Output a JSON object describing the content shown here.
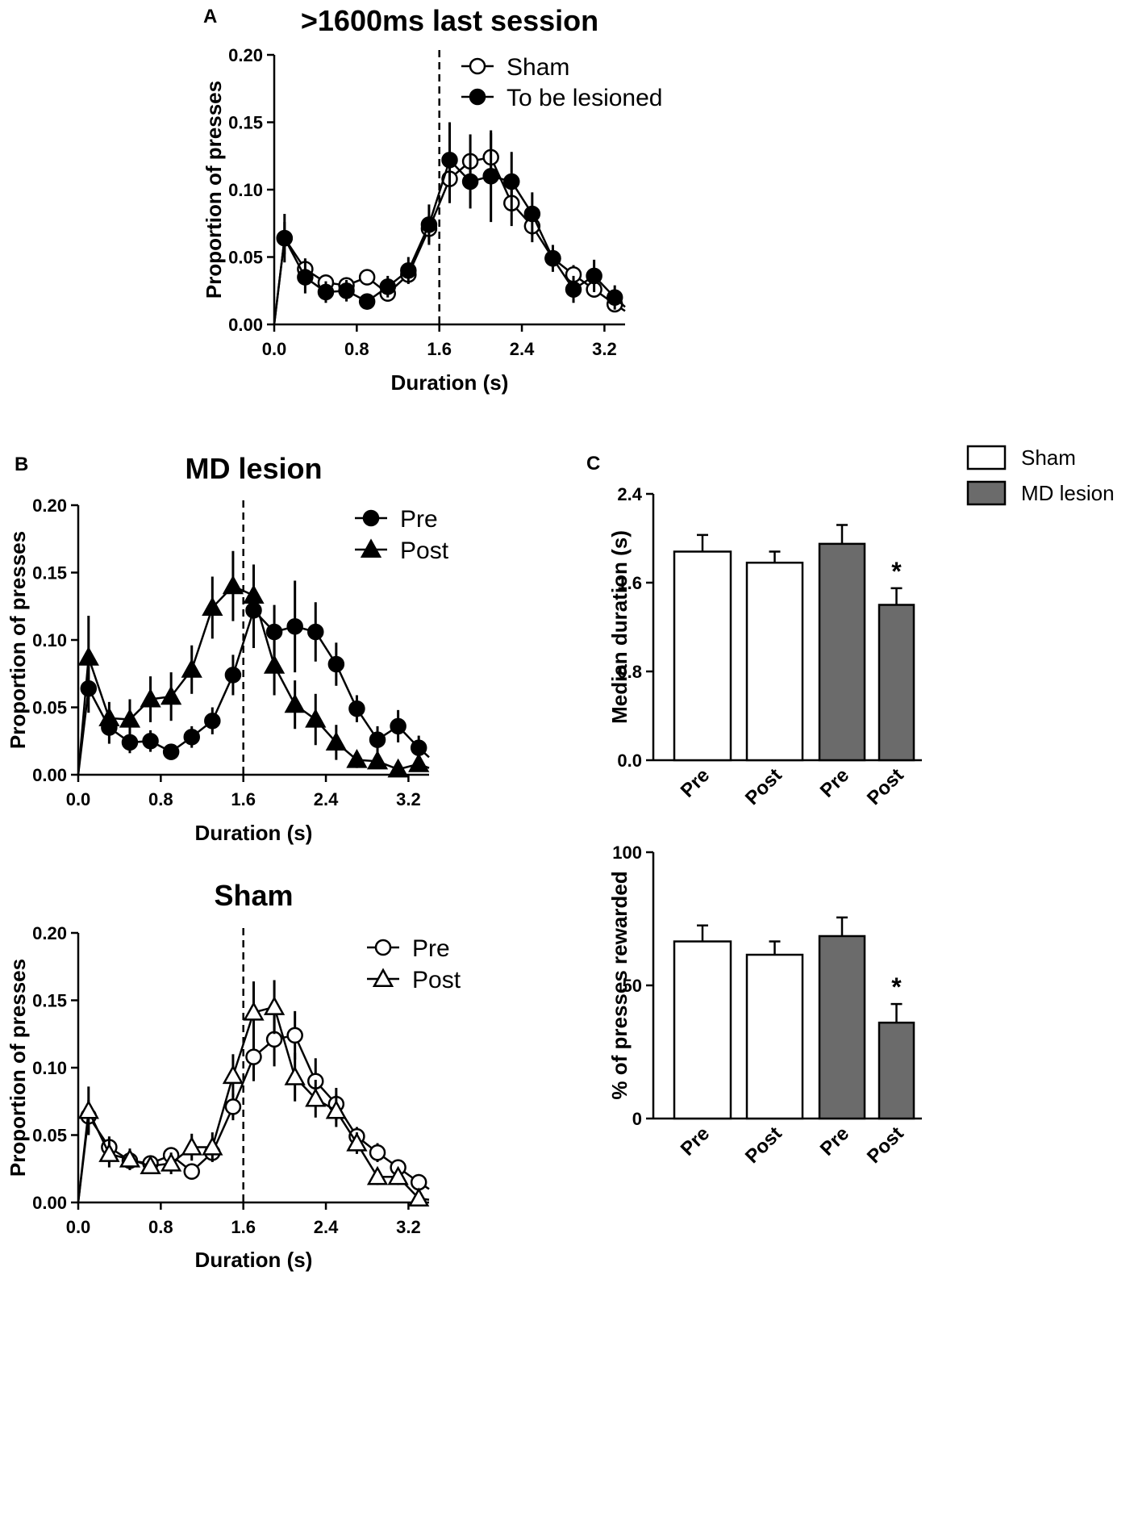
{
  "chart_data": [
    {
      "id": "A",
      "type": "line",
      "panel_letter": "A",
      "title": ">1600ms last session",
      "xlabel": "Duration (s)",
      "ylabel": "Proportion of presses",
      "xlim": [
        0,
        3.4
      ],
      "ylim": [
        0,
        0.2
      ],
      "xticks": [
        "0.0",
        "0.8",
        "1.6",
        "2.4",
        "3.2"
      ],
      "yticks": [
        "0.00",
        "0.05",
        "0.10",
        "0.15",
        "0.20"
      ],
      "xtick_values": [
        0,
        0.8,
        1.6,
        2.4,
        3.2
      ],
      "ytick_values": [
        0,
        0.05,
        0.1,
        0.15,
        0.2
      ],
      "criterion_line": 1.6,
      "legend": "top-right",
      "series": [
        {
          "name": "Sham",
          "marker": "circle-open",
          "x": [
            0,
            0.1,
            0.3,
            0.5,
            0.7,
            0.9,
            1.1,
            1.3,
            1.5,
            1.7,
            1.9,
            2.1,
            2.3,
            2.5,
            2.7,
            2.9,
            3.1,
            3.3,
            3.4
          ],
          "y": [
            0,
            0.064,
            0.041,
            0.031,
            0.029,
            0.035,
            0.023,
            0.037,
            0.071,
            0.108,
            0.121,
            0.124,
            0.09,
            0.073,
            0.049,
            0.037,
            0.026,
            0.015,
            0.01
          ],
          "err": [
            null,
            0.012,
            0.008,
            0.006,
            0.006,
            0.006,
            0.006,
            0.006,
            0.01,
            0.018,
            0.02,
            0.018,
            0.017,
            0.012,
            0.007,
            0.007,
            0.006,
            0.006,
            null
          ]
        },
        {
          "name": "To be lesioned",
          "marker": "circle-filled",
          "x": [
            0,
            0.1,
            0.3,
            0.5,
            0.7,
            0.9,
            1.1,
            1.3,
            1.5,
            1.7,
            1.9,
            2.1,
            2.3,
            2.5,
            2.7,
            2.9,
            3.1,
            3.3,
            3.4
          ],
          "y": [
            0,
            0.064,
            0.035,
            0.024,
            0.025,
            0.017,
            0.028,
            0.04,
            0.074,
            0.122,
            0.106,
            0.11,
            0.106,
            0.082,
            0.049,
            0.026,
            0.036,
            0.02,
            0.013
          ],
          "err": [
            null,
            0.018,
            0.012,
            0.008,
            0.008,
            0.006,
            0.008,
            0.01,
            0.015,
            0.028,
            0.02,
            0.034,
            0.022,
            0.016,
            0.01,
            0.01,
            0.012,
            0.009,
            null
          ]
        }
      ]
    },
    {
      "id": "B1",
      "type": "line",
      "panel_letter": "B",
      "title": "MD lesion",
      "xlabel": "Duration (s)",
      "ylabel": "Proportion of presses",
      "xlim": [
        0,
        3.4
      ],
      "ylim": [
        0,
        0.2
      ],
      "xticks": [
        "0.0",
        "0.8",
        "1.6",
        "2.4",
        "3.2"
      ],
      "yticks": [
        "0.00",
        "0.05",
        "0.10",
        "0.15",
        "0.20"
      ],
      "xtick_values": [
        0,
        0.8,
        1.6,
        2.4,
        3.2
      ],
      "ytick_values": [
        0,
        0.05,
        0.1,
        0.15,
        0.2
      ],
      "criterion_line": 1.6,
      "legend": "top-right",
      "series": [
        {
          "name": "Pre",
          "marker": "circle-filled",
          "x": [
            0,
            0.1,
            0.3,
            0.5,
            0.7,
            0.9,
            1.1,
            1.3,
            1.5,
            1.7,
            1.9,
            2.1,
            2.3,
            2.5,
            2.7,
            2.9,
            3.1,
            3.3,
            3.4
          ],
          "y": [
            0,
            0.064,
            0.035,
            0.024,
            0.025,
            0.017,
            0.028,
            0.04,
            0.074,
            0.122,
            0.106,
            0.11,
            0.106,
            0.082,
            0.049,
            0.026,
            0.036,
            0.02,
            0.013
          ],
          "err": [
            null,
            0.018,
            0.012,
            0.008,
            0.008,
            0.006,
            0.008,
            0.01,
            0.015,
            0.028,
            0.02,
            0.034,
            0.022,
            0.016,
            0.01,
            0.01,
            0.012,
            0.009,
            null
          ]
        },
        {
          "name": "Post",
          "marker": "triangle-filled",
          "x": [
            0,
            0.1,
            0.3,
            0.5,
            0.7,
            0.9,
            1.1,
            1.3,
            1.5,
            1.7,
            1.9,
            2.1,
            2.3,
            2.5,
            2.7,
            2.9,
            3.1,
            3.3,
            3.4
          ],
          "y": [
            0,
            0.087,
            0.042,
            0.041,
            0.056,
            0.058,
            0.078,
            0.124,
            0.14,
            0.133,
            0.081,
            0.052,
            0.041,
            0.024,
            0.011,
            0.01,
            0.004,
            0.008,
            0.005
          ],
          "err": [
            null,
            0.031,
            0.012,
            0.015,
            0.017,
            0.018,
            0.018,
            0.023,
            0.026,
            0.023,
            0.022,
            0.018,
            0.019,
            0.013,
            0.006,
            0.005,
            0.003,
            0.004,
            null
          ]
        }
      ]
    },
    {
      "id": "B2",
      "type": "line",
      "title": "Sham",
      "xlabel": "Duration (s)",
      "ylabel": "Proportion of presses",
      "xlim": [
        0,
        3.4
      ],
      "ylim": [
        0,
        0.2
      ],
      "xticks": [
        "0.0",
        "0.8",
        "1.6",
        "2.4",
        "3.2"
      ],
      "yticks": [
        "0.00",
        "0.05",
        "0.10",
        "0.15",
        "0.20"
      ],
      "xtick_values": [
        0,
        0.8,
        1.6,
        2.4,
        3.2
      ],
      "ytick_values": [
        0,
        0.05,
        0.1,
        0.15,
        0.2
      ],
      "criterion_line": 1.6,
      "legend": "top-right",
      "series": [
        {
          "name": "Pre",
          "marker": "circle-open",
          "x": [
            0,
            0.1,
            0.3,
            0.5,
            0.7,
            0.9,
            1.1,
            1.3,
            1.5,
            1.7,
            1.9,
            2.1,
            2.3,
            2.5,
            2.7,
            2.9,
            3.1,
            3.3,
            3.4
          ],
          "y": [
            0,
            0.064,
            0.041,
            0.031,
            0.029,
            0.035,
            0.023,
            0.037,
            0.071,
            0.108,
            0.121,
            0.124,
            0.09,
            0.073,
            0.049,
            0.037,
            0.026,
            0.015,
            0.01
          ],
          "err": [
            null,
            0.012,
            0.008,
            0.006,
            0.006,
            0.006,
            0.006,
            0.006,
            0.01,
            0.018,
            0.02,
            0.018,
            0.017,
            0.012,
            0.007,
            0.007,
            0.006,
            0.006,
            null
          ]
        },
        {
          "name": "Post",
          "marker": "triangle-open",
          "x": [
            0,
            0.1,
            0.3,
            0.5,
            0.7,
            0.9,
            1.1,
            1.3,
            1.5,
            1.7,
            1.9,
            2.1,
            2.3,
            2.5,
            2.7,
            2.9,
            3.1,
            3.3,
            3.4
          ],
          "y": [
            0,
            0.068,
            0.036,
            0.032,
            0.027,
            0.029,
            0.041,
            0.041,
            0.094,
            0.141,
            0.145,
            0.093,
            0.077,
            0.068,
            0.044,
            0.019,
            0.019,
            0.003,
            0.002
          ],
          "err": [
            null,
            0.018,
            0.01,
            0.008,
            0.006,
            0.008,
            0.01,
            0.011,
            0.016,
            0.023,
            0.02,
            0.018,
            0.014,
            0.012,
            0.008,
            0.006,
            0.006,
            0.002,
            null
          ]
        }
      ]
    },
    {
      "id": "C1",
      "type": "bar",
      "panel_letter": "C",
      "ylabel": "Median duration (s)",
      "ylim": [
        0,
        2.4
      ],
      "yticks": [
        "0.0",
        "0.8",
        "1.6",
        "2.4"
      ],
      "ytick_values": [
        0,
        0.8,
        1.6,
        2.4
      ],
      "categories": [
        "Pre",
        "Post",
        "Pre",
        "Post"
      ],
      "groups": [
        "Sham",
        "Sham",
        "MD lesion",
        "MD lesion"
      ],
      "values": [
        1.88,
        1.78,
        1.95,
        1.4
      ],
      "errors": [
        0.15,
        0.1,
        0.17,
        0.15
      ],
      "significance": [
        "",
        "",
        "",
        "*"
      ],
      "legend": "top-right",
      "legend_entries": [
        {
          "name": "Sham",
          "color": "#ffffff"
        },
        {
          "name": "MD lesion",
          "color": "#6b6b6b"
        }
      ]
    },
    {
      "id": "C2",
      "type": "bar",
      "ylabel": "% of presses rewarded",
      "ylim": [
        0,
        100
      ],
      "yticks": [
        "0",
        "50",
        "100"
      ],
      "ytick_values": [
        0,
        50,
        100
      ],
      "categories": [
        "Pre",
        "Post",
        "Pre",
        "Post"
      ],
      "groups": [
        "Sham",
        "Sham",
        "MD lesion",
        "MD lesion"
      ],
      "values": [
        66.5,
        61.5,
        68.5,
        36
      ],
      "errors": [
        6,
        5,
        7,
        7
      ],
      "significance": [
        "",
        "",
        "",
        "*"
      ],
      "colors": [
        "#ffffff",
        "#ffffff",
        "#6b6b6b",
        "#6b6b6b"
      ]
    }
  ]
}
